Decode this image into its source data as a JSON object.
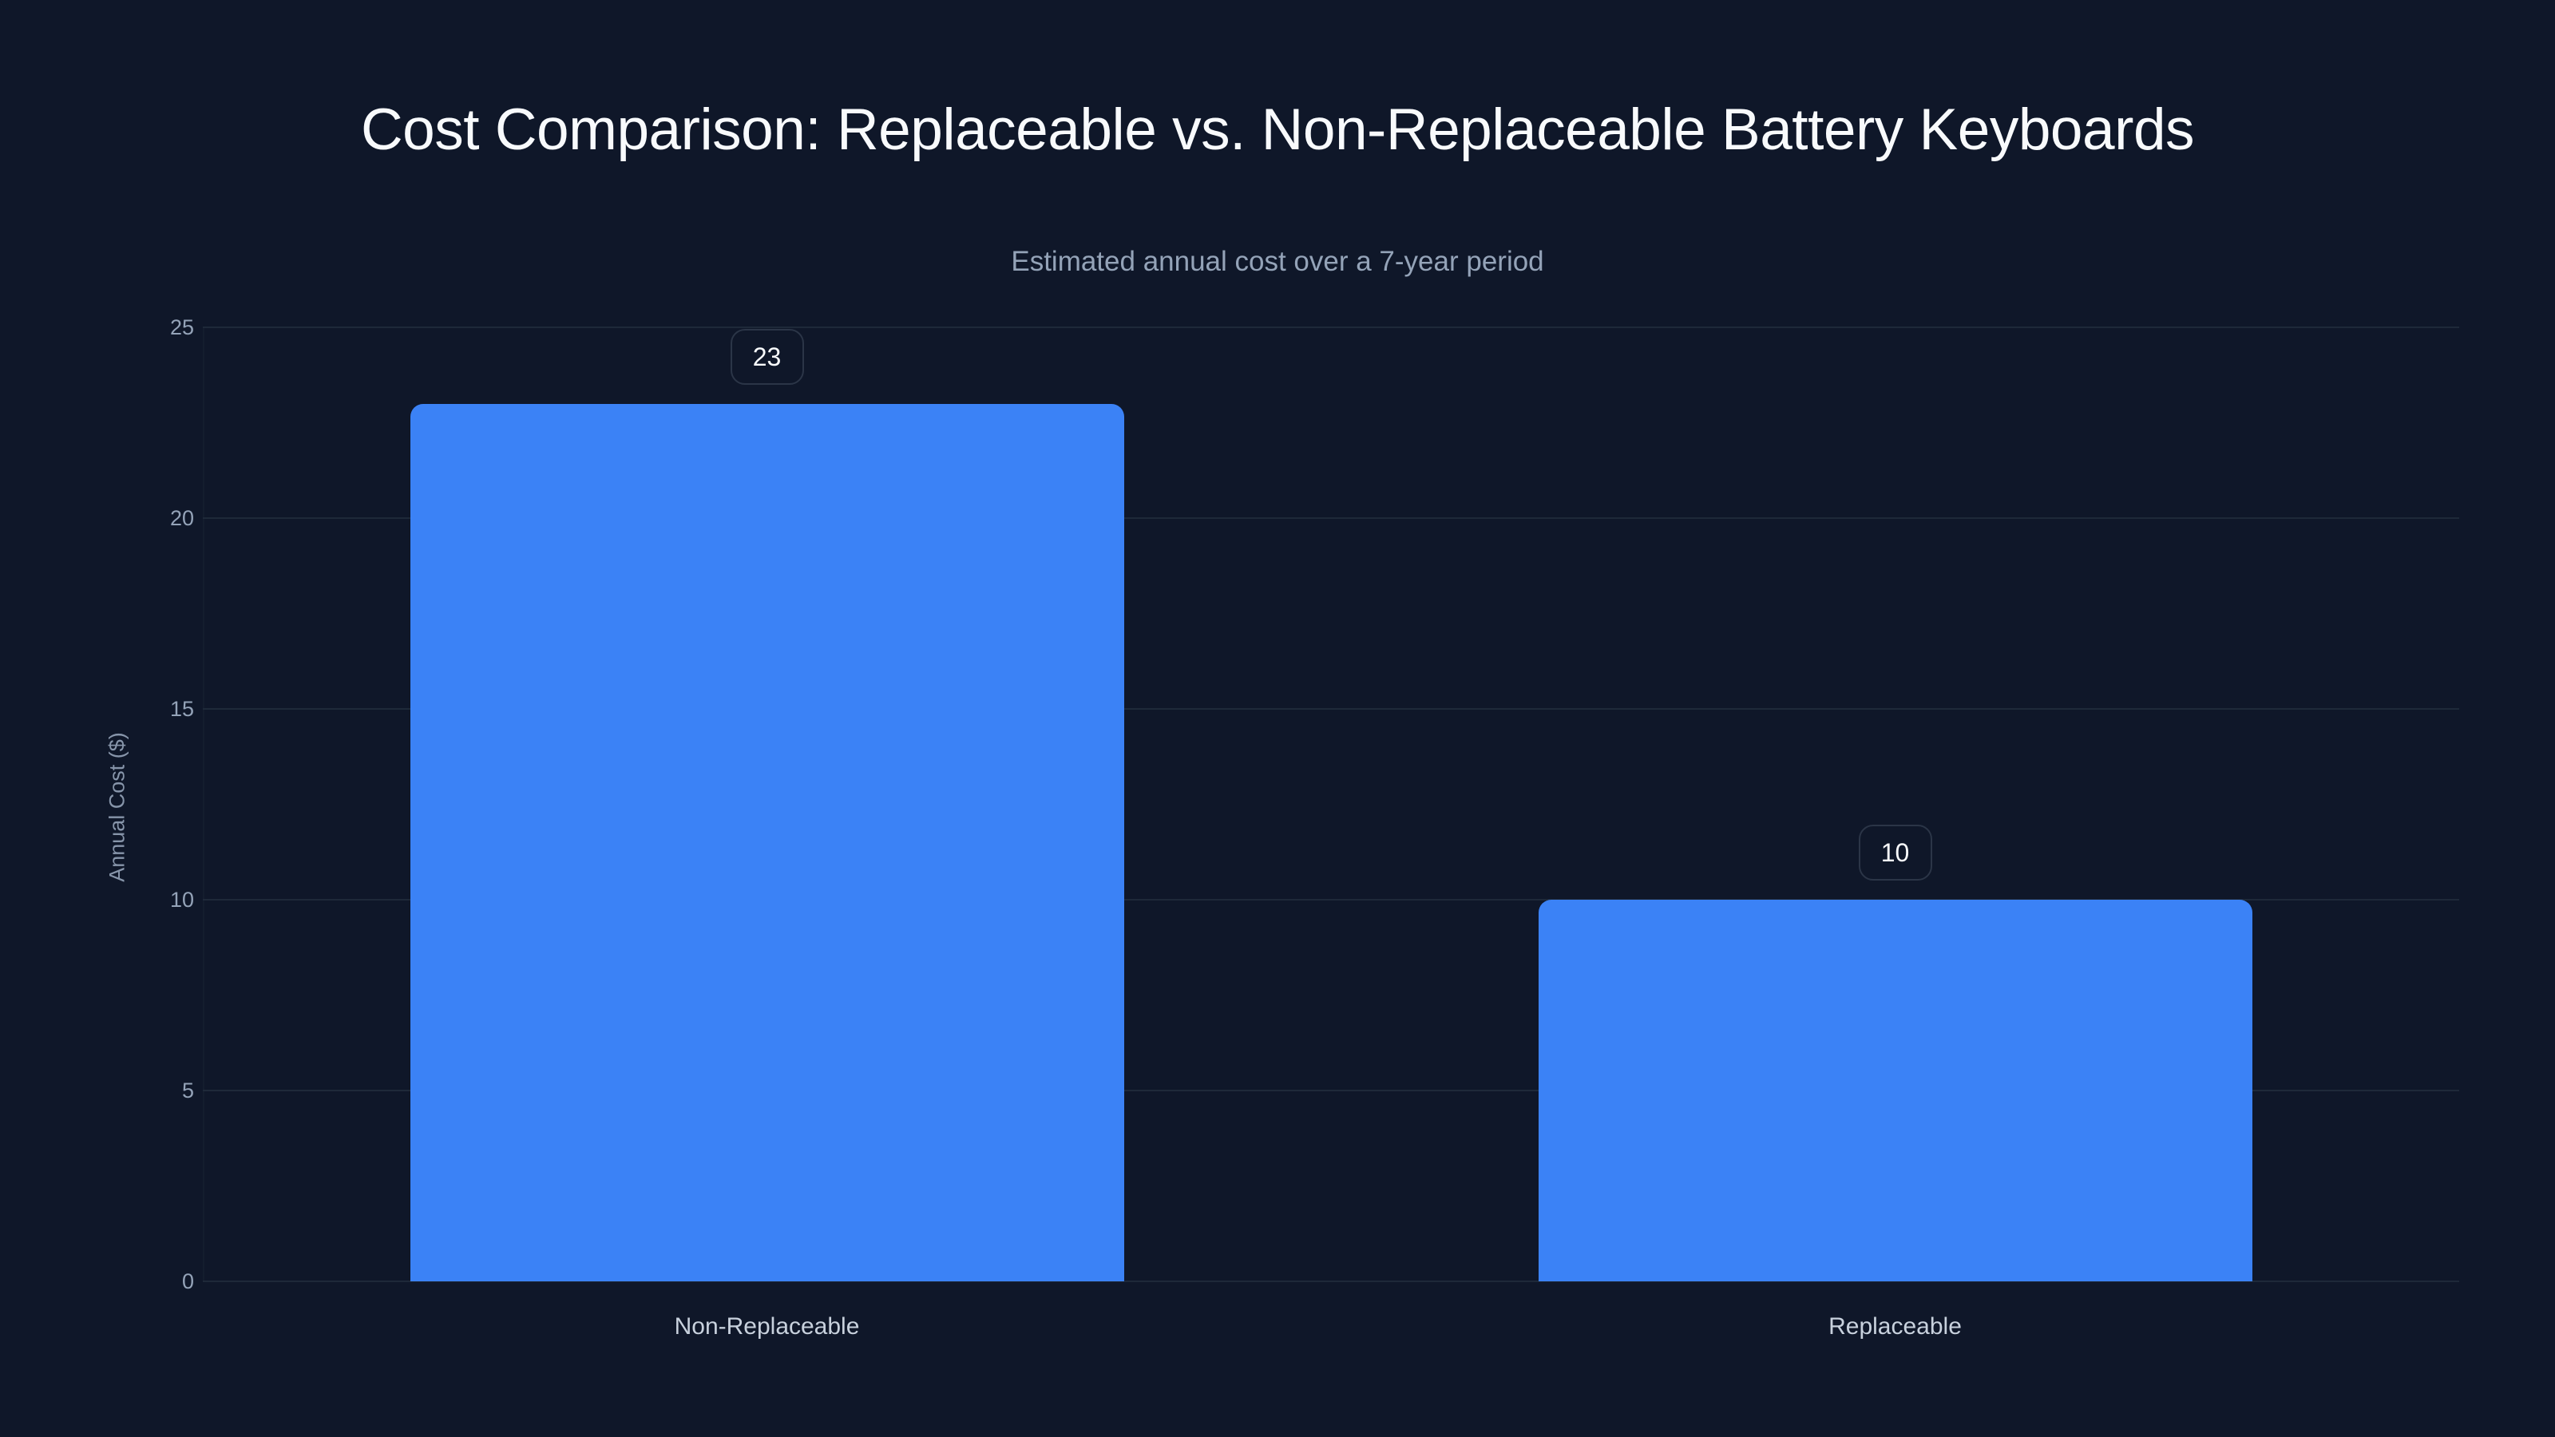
{
  "header": {
    "title": "Cost Comparison: Replaceable vs. Non-Replaceable Battery Keyboards",
    "subtitle": "Estimated annual cost over a 7-year period"
  },
  "axes": {
    "ylabel": "Annual Cost ($)",
    "yticks": [
      "0",
      "5",
      "10",
      "15",
      "20",
      "25"
    ]
  },
  "bars": [
    {
      "label": "Non-Replaceable",
      "value": 23,
      "value_label": "23"
    },
    {
      "label": "Replaceable",
      "value": 10,
      "value_label": "10"
    }
  ],
  "colors": {
    "background": "#0f1729",
    "bar": "#3b82f6",
    "gridline": "#1e2939",
    "title": "#f8fafc",
    "muted_text": "#94a3b8"
  },
  "chart_data": {
    "type": "bar",
    "title": "Cost Comparison: Replaceable vs. Non-Replaceable Battery Keyboards",
    "subtitle": "Estimated annual cost over a 7-year period",
    "categories": [
      "Non-Replaceable",
      "Replaceable"
    ],
    "values": [
      23,
      10
    ],
    "xlabel": "",
    "ylabel": "Annual Cost ($)",
    "ylim": [
      0,
      25
    ],
    "yticks": [
      0,
      5,
      10,
      15,
      20,
      25
    ],
    "grid": true,
    "data_labels": true,
    "legend": null
  }
}
